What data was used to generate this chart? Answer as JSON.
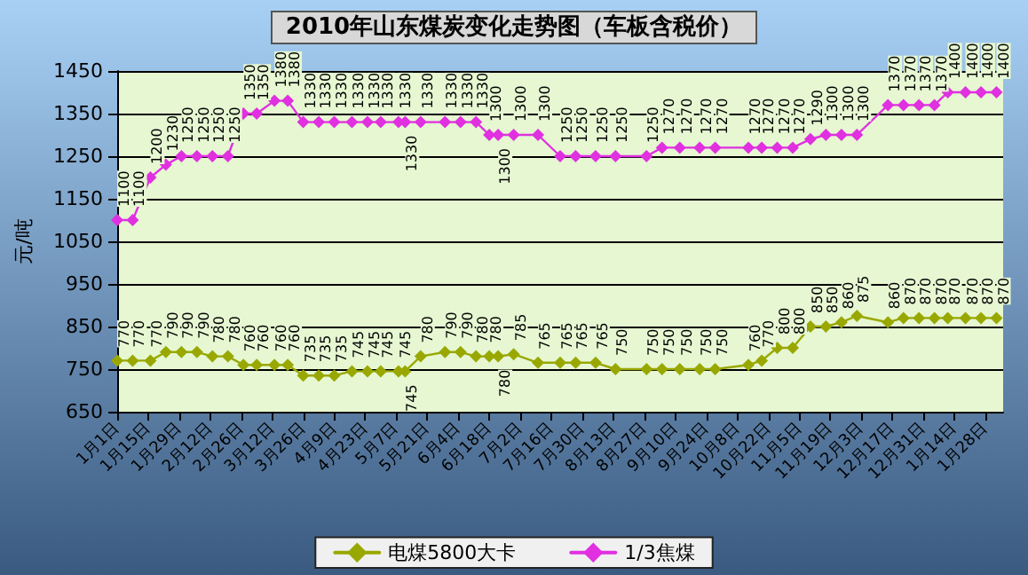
{
  "chart_data": {
    "type": "line",
    "title": "2010年山东煤炭变化走势图（车板含税价）",
    "ylabel": "元/吨",
    "x": [
      "2010-01-01",
      "2010-01-08",
      "2010-01-16",
      "2010-01-23",
      "2010-01-30",
      "2010-02-06",
      "2010-02-13",
      "2010-02-20",
      "2010-02-27",
      "2010-03-05",
      "2010-03-13",
      "2010-03-19",
      "2010-03-26",
      "2010-04-02",
      "2010-04-09",
      "2010-04-17",
      "2010-04-24",
      "2010-04-30",
      "2010-05-08",
      "2010-05-11",
      "2010-05-18",
      "2010-05-29",
      "2010-06-05",
      "2010-06-12",
      "2010-06-18",
      "2010-06-22",
      "2010-06-29",
      "2010-07-10",
      "2010-07-20",
      "2010-07-27",
      "2010-08-05",
      "2010-08-14",
      "2010-08-28",
      "2010-09-04",
      "2010-09-12",
      "2010-09-21",
      "2010-09-28",
      "2010-10-13",
      "2010-10-19",
      "2010-10-26",
      "2010-11-02",
      "2010-11-10",
      "2010-11-17",
      "2010-11-24",
      "2010-12-01",
      "2010-12-15",
      "2010-12-22",
      "2010-12-29",
      "2011-01-05",
      "2011-01-11",
      "2011-01-19",
      "2011-01-26",
      "2011-02-02"
    ],
    "series": [
      {
        "name": "电煤5800大卡",
        "color": "#99a800",
        "values": [
          770,
          770,
          770,
          790,
          790,
          790,
          780,
          780,
          760,
          760,
          760,
          760,
          735,
          735,
          735,
          745,
          745,
          745,
          745,
          745,
          780,
          790,
          790,
          780,
          780,
          780,
          785,
          765,
          765,
          765,
          765,
          750,
          750,
          750,
          750,
          750,
          750,
          760,
          770,
          800,
          800,
          850,
          850,
          860,
          875,
          860,
          870,
          870,
          870,
          870,
          870,
          870,
          870
        ]
      },
      {
        "name": "1/3焦煤",
        "color": "#e030e0",
        "values": [
          1100,
          1100,
          1200,
          1230,
          1250,
          1250,
          1250,
          1250,
          1350,
          1350,
          1380,
          1380,
          1330,
          1330,
          1330,
          1330,
          1330,
          1330,
          1330,
          1330,
          1330,
          1330,
          1330,
          1330,
          1300,
          1300,
          1300,
          1300,
          1250,
          1250,
          1250,
          1250,
          1250,
          1270,
          1270,
          1270,
          1270,
          1270,
          1270,
          1270,
          1270,
          1290,
          1300,
          1300,
          1300,
          1370,
          1370,
          1370,
          1370,
          1400,
          1400,
          1400,
          1400
        ]
      }
    ],
    "xlim": [
      "2010-01-01",
      "2011-02-05"
    ],
    "xticks": [
      {
        "value": "2010-01-01",
        "label": "1月1日"
      },
      {
        "value": "2010-01-15",
        "label": "1月15日"
      },
      {
        "value": "2010-01-29",
        "label": "1月29日"
      },
      {
        "value": "2010-02-12",
        "label": "2月12日"
      },
      {
        "value": "2010-02-26",
        "label": "2月26日"
      },
      {
        "value": "2010-03-12",
        "label": "3月12日"
      },
      {
        "value": "2010-03-26",
        "label": "3月26日"
      },
      {
        "value": "2010-04-09",
        "label": "4月9日"
      },
      {
        "value": "2010-04-23",
        "label": "4月23日"
      },
      {
        "value": "2010-05-07",
        "label": "5月7日"
      },
      {
        "value": "2010-05-21",
        "label": "5月21日"
      },
      {
        "value": "2010-06-04",
        "label": "6月4日"
      },
      {
        "value": "2010-06-18",
        "label": "6月18日"
      },
      {
        "value": "2010-07-02",
        "label": "7月2日"
      },
      {
        "value": "2010-07-16",
        "label": "7月16日"
      },
      {
        "value": "2010-07-30",
        "label": "7月30日"
      },
      {
        "value": "2010-08-13",
        "label": "8月13日"
      },
      {
        "value": "2010-08-27",
        "label": "8月27日"
      },
      {
        "value": "2010-09-10",
        "label": "9月10日"
      },
      {
        "value": "2010-09-24",
        "label": "9月24日"
      },
      {
        "value": "2010-10-08",
        "label": "10月8日"
      },
      {
        "value": "2010-10-22",
        "label": "10月22日"
      },
      {
        "value": "2010-11-05",
        "label": "11月5日"
      },
      {
        "value": "2010-11-19",
        "label": "11月19日"
      },
      {
        "value": "2010-12-03",
        "label": "12月3日"
      },
      {
        "value": "2010-12-17",
        "label": "12月17日"
      },
      {
        "value": "2010-12-31",
        "label": "12月31日"
      },
      {
        "value": "2011-01-14",
        "label": "1月14日"
      },
      {
        "value": "2011-01-28",
        "label": "1月28日"
      }
    ],
    "ylim": [
      650,
      1450
    ],
    "yticks": [
      650,
      750,
      850,
      950,
      1050,
      1150,
      1250,
      1350,
      1450
    ],
    "grid": "y",
    "legend": "bottom",
    "marker": "diamond",
    "line_style": "solid",
    "data_labels": true
  }
}
